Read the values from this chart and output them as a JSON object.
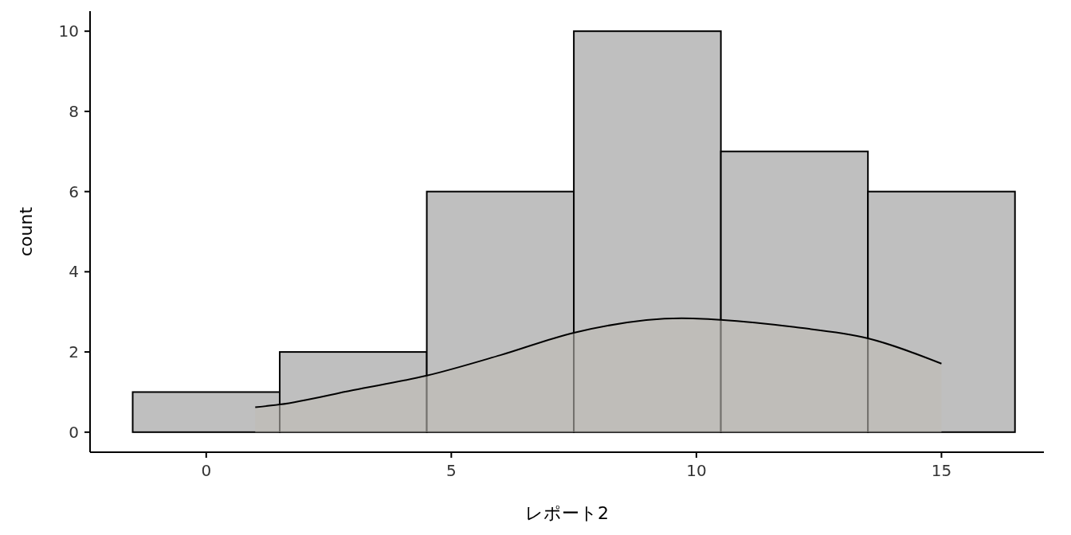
{
  "chart_data": {
    "type": "histogram",
    "xlabel": "レポート2",
    "ylabel": "count",
    "bins": [
      -1.5,
      1.5,
      4.5,
      7.5,
      10.5,
      13.5,
      16.5
    ],
    "xlim": [
      -2.37,
      17.09
    ],
    "ylim": [
      -0.5,
      10.5
    ],
    "xticks": [
      0,
      5,
      10,
      15
    ],
    "yticks": [
      0,
      2,
      4,
      6,
      8,
      10
    ],
    "grid": false,
    "series": [
      {
        "color": "#bfbfbf",
        "values": [
          1,
          2,
          6,
          10,
          7,
          6
        ]
      },
      {
        "type": "area",
        "color": "#c0bcb6",
        "x": [
          1,
          1.5,
          3,
          4.5,
          6,
          7.5,
          9.7,
          10.5,
          12,
          13.5,
          15
        ],
        "values": [
          0.62,
          0.69,
          1.05,
          1.41,
          1.92,
          2.48,
          2.84,
          2.8,
          2.62,
          2.34,
          1.71
        ]
      }
    ]
  }
}
